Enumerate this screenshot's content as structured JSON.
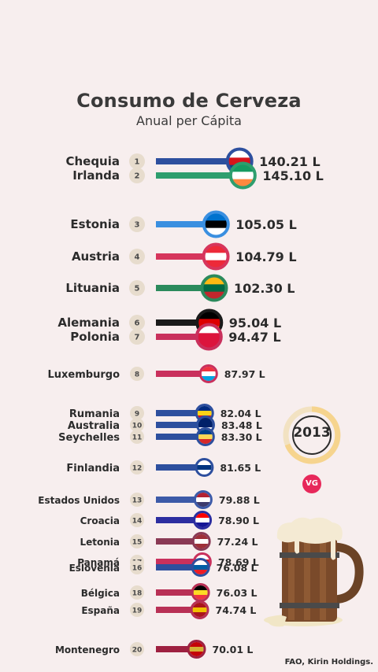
{
  "header": {
    "title": "Consumo de Cerveza",
    "subtitle": "Anual per Cápita"
  },
  "year": "2013",
  "logo": "VG",
  "source": "FAO, Kirin Holdings.",
  "chart_data": {
    "type": "bar",
    "title": "Consumo de Cerveza",
    "subtitle": "Anual per Cápita",
    "unit": "L",
    "categories": [
      "Chequia",
      "Irlanda",
      "Estonia",
      "Austria",
      "Lituania",
      "Alemania",
      "Polonia",
      "Luxemburgo",
      "Rumania",
      "Australia",
      "Seychelles",
      "Finlandia",
      "Estados Unidos",
      "Croacia",
      "Letonia",
      "Panamá",
      "Eslovenia",
      "Bélgica",
      "España",
      "Montenegro"
    ],
    "ranks": [
      "1",
      "2",
      "3",
      "4",
      "5",
      "6",
      "7",
      "8",
      "9",
      "10",
      "11",
      "12",
      "13",
      "14",
      "15",
      "17",
      "16",
      "18",
      "19",
      "20"
    ],
    "values": [
      140.21,
      145.1,
      105.05,
      104.79,
      102.3,
      95.04,
      94.47,
      87.97,
      82.04,
      83.48,
      83.3,
      81.65,
      79.88,
      78.9,
      77.24,
      78.69,
      76.08,
      76.03,
      74.74,
      70.01
    ],
    "value_labels": [
      "140.21 L",
      "145.10 L",
      "105.05 L",
      "104.79 L",
      "102.30 L",
      "95.04 L",
      "94.47 L",
      "87.97 L",
      "82.04 L",
      "83.48 L",
      "83.30 L",
      "81.65 L",
      "79.88 L",
      "78.90 L",
      "77.24 L",
      "78.69 L",
      "76.08 L",
      "76.03 L",
      "74.74 L",
      "70.01 L"
    ],
    "colors": [
      "#2d4f9e",
      "#2e9e6e",
      "#3a8fe0",
      "#d6355c",
      "#2b8a5c",
      "#1a1a1a",
      "#c9305c",
      "#c9305c",
      "#2d4f9e",
      "#2d4f9e",
      "#2d4f9e",
      "#2d4f9e",
      "#3c5aa8",
      "#2c2ea0",
      "#8a3a55",
      "#c9305c",
      "#2d4f9e",
      "#b83055",
      "#b83055",
      "#9e2040"
    ],
    "flag_icons": [
      "czech-flag-icon",
      "ireland-flag-icon",
      "estonia-flag-icon",
      "austria-flag-icon",
      "lithuania-flag-icon",
      "germany-flag-icon",
      "poland-flag-icon",
      "luxembourg-flag-icon",
      "romania-flag-icon",
      "australia-flag-icon",
      "seychelles-flag-icon",
      "finland-flag-icon",
      "usa-flag-icon",
      "croatia-flag-icon",
      "latvia-flag-icon",
      "panama-flag-icon",
      "slovenia-flag-icon",
      "belgium-flag-icon",
      "spain-flag-icon",
      "montenegro-flag-icon"
    ]
  }
}
